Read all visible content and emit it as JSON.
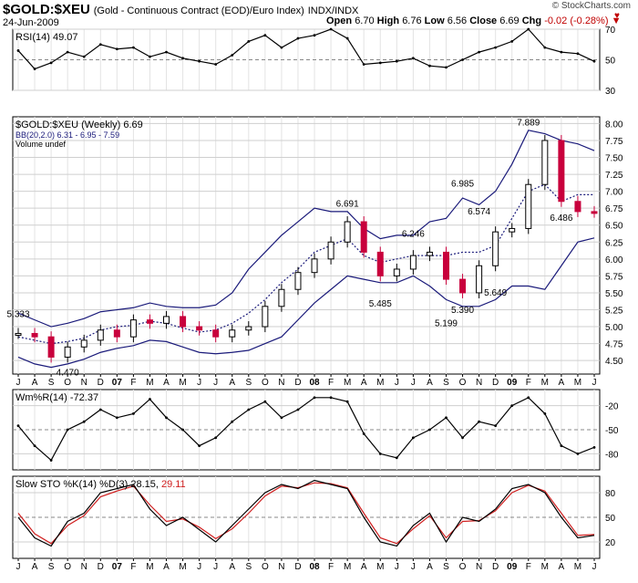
{
  "header": {
    "symbol": "$GOLD:$XEU",
    "description": "(Gold - Continuous Contract (EOD)/Euro Index)",
    "exchange": "INDX/INDX",
    "date": "24-Jun-2009",
    "open_label": "Open",
    "open": "6.70",
    "high_label": "High",
    "high": "6.76",
    "low_label": "Low",
    "low": "6.56",
    "close_label": "Close",
    "close": "6.69",
    "chg_label": "Chg",
    "chg": "-0.02 (-0.28%)",
    "brand": "© StockCharts.com",
    "chg_arrow_icon": "down-triangle-icon"
  },
  "colors": {
    "up": "#000000",
    "down": "#c8003c",
    "band": "#1a1a7a",
    "fill_green": "#5a8a5a",
    "fill_red": "#c07070",
    "slow_d": "#d02020"
  },
  "chart_data": [
    {
      "type": "line",
      "title": "RSI(14) 49.07",
      "legend": [
        "RSI(14) 49.07"
      ],
      "ylim": [
        30,
        70
      ],
      "y_ticks": [
        "70",
        "50",
        "30"
      ],
      "shaded": "above 70 green",
      "x": [
        "2006-07",
        "2006-08",
        "2006-09",
        "2006-10",
        "2006-11",
        "2006-12",
        "2007-01",
        "2007-02",
        "2007-03",
        "2007-04",
        "2007-05",
        "2007-06",
        "2007-07",
        "2007-08",
        "2007-09",
        "2007-10",
        "2007-11",
        "2007-12",
        "2008-01",
        "2008-02",
        "2008-03",
        "2008-04",
        "2008-05",
        "2008-06",
        "2008-07",
        "2008-08",
        "2008-09",
        "2008-10",
        "2008-11",
        "2008-12",
        "2009-01",
        "2009-02",
        "2009-03",
        "2009-04",
        "2009-05",
        "2009-06"
      ],
      "values": [
        56,
        44,
        48,
        55,
        52,
        60,
        57,
        58,
        52,
        55,
        51,
        49,
        47,
        53,
        62,
        66,
        58,
        64,
        66,
        70,
        64,
        47,
        48,
        49,
        51,
        46,
        45,
        50,
        55,
        58,
        62,
        70,
        58,
        55,
        54,
        49
      ]
    },
    {
      "type": "candlestick",
      "title": "$GOLD:$XEU (Weekly) 6.69",
      "legend": [
        "$GOLD:$XEU (Weekly) 6.69",
        "BB(20,2.0) 6.31 - 6.95 - 7.59",
        "Volume undef"
      ],
      "ylim": [
        4.3,
        8.1
      ],
      "y_ticks": [
        "8.00",
        "7.75",
        "7.50",
        "7.25",
        "7.00",
        "6.75",
        "6.50",
        "6.25",
        "6.00",
        "5.75",
        "5.50",
        "5.25",
        "5.00",
        "4.75",
        "4.50"
      ],
      "x_ticks": [
        "J",
        "A",
        "S",
        "O",
        "N",
        "D",
        "07",
        "F",
        "M",
        "A",
        "M",
        "J",
        "J",
        "A",
        "S",
        "O",
        "N",
        "D",
        "08",
        "F",
        "M",
        "A",
        "M",
        "J",
        "J",
        "A",
        "S",
        "O",
        "N",
        "D",
        "09",
        "F",
        "M",
        "A",
        "M",
        "J"
      ],
      "bb_upper": [
        5.2,
        5.1,
        5.0,
        5.05,
        5.12,
        5.22,
        5.25,
        5.28,
        5.35,
        5.3,
        5.28,
        5.28,
        5.32,
        5.5,
        5.85,
        6.1,
        6.35,
        6.55,
        6.75,
        6.7,
        6.7,
        6.45,
        6.3,
        6.35,
        6.35,
        6.55,
        6.6,
        6.9,
        6.8,
        7.0,
        7.4,
        7.9,
        7.85,
        7.75,
        7.7,
        7.6
      ],
      "bb_middle": [
        4.85,
        4.8,
        4.75,
        4.78,
        4.83,
        4.95,
        5.0,
        5.02,
        5.08,
        5.05,
        4.98,
        4.92,
        4.95,
        5.05,
        5.2,
        5.4,
        5.65,
        5.85,
        6.1,
        6.2,
        6.3,
        6.05,
        5.95,
        6.0,
        6.05,
        6.05,
        6.05,
        6.1,
        6.1,
        6.2,
        6.6,
        7.0,
        7.1,
        6.85,
        6.95,
        6.95
      ],
      "bb_lower": [
        4.55,
        4.45,
        4.4,
        4.45,
        4.52,
        4.62,
        4.68,
        4.72,
        4.8,
        4.78,
        4.7,
        4.62,
        4.6,
        4.62,
        4.65,
        4.75,
        4.85,
        5.1,
        5.35,
        5.55,
        5.75,
        5.7,
        5.65,
        5.65,
        5.75,
        5.6,
        5.4,
        5.3,
        5.3,
        5.4,
        5.6,
        5.6,
        5.55,
        5.9,
        6.25,
        6.31
      ],
      "annotations": [
        {
          "label": "5.333",
          "x": "2006-07",
          "y": 5.333
        },
        {
          "label": "4.470",
          "x": "2006-10",
          "y": 4.47
        },
        {
          "label": "6.691",
          "x": "2008-03",
          "y": 6.691
        },
        {
          "label": "5.485",
          "x": "2008-05",
          "y": 5.485
        },
        {
          "label": "6.246",
          "x": "2008-07",
          "y": 6.246
        },
        {
          "label": "6.985",
          "x": "2008-10",
          "y": 6.985
        },
        {
          "label": "5.199",
          "x": "2008-09",
          "y": 5.199
        },
        {
          "label": "5.390",
          "x": "2008-10",
          "y": 5.39
        },
        {
          "label": "6.574",
          "x": "2008-11",
          "y": 6.574
        },
        {
          "label": "5.649",
          "x": "2008-12",
          "y": 5.649
        },
        {
          "label": "7.889",
          "x": "2009-02",
          "y": 7.889
        },
        {
          "label": "6.486",
          "x": "2009-04",
          "y": 6.486
        }
      ],
      "close": [
        4.9,
        4.85,
        4.55,
        4.7,
        4.8,
        4.95,
        4.85,
        5.1,
        5.05,
        5.15,
        5.0,
        4.95,
        4.85,
        4.95,
        5.0,
        5.3,
        5.55,
        5.8,
        6.0,
        6.25,
        6.55,
        6.1,
        5.75,
        5.85,
        6.05,
        6.1,
        5.7,
        5.5,
        5.9,
        6.4,
        6.45,
        7.1,
        7.75,
        6.85,
        6.7,
        6.69
      ]
    },
    {
      "type": "line",
      "title": "Wm%R(14) -72.37",
      "legend": [
        "Wm%R(14) -72.37"
      ],
      "ylim": [
        -100,
        0
      ],
      "y_ticks": [
        "-20",
        "-50",
        "-80"
      ],
      "shaded": "above -20 green, below -80 red",
      "values": [
        -45,
        -70,
        -88,
        -50,
        -40,
        -25,
        -35,
        -30,
        -12,
        -35,
        -50,
        -70,
        -60,
        -40,
        -25,
        -15,
        -35,
        -25,
        -10,
        -10,
        -15,
        -55,
        -80,
        -85,
        -60,
        -50,
        -35,
        -60,
        -40,
        -45,
        -20,
        -10,
        -30,
        -70,
        -80,
        -72
      ]
    },
    {
      "type": "line",
      "title": "Slow STO %K(14) %D(3) 28.15, 29.11",
      "legend": [
        "Slow STO %K(14) %D(3) 28.15",
        "29.11"
      ],
      "ylim": [
        0,
        100
      ],
      "y_ticks": [
        "80",
        "50",
        "20"
      ],
      "series": [
        {
          "name": "%K(14)",
          "values": [
            50,
            25,
            15,
            45,
            55,
            80,
            85,
            90,
            60,
            40,
            50,
            35,
            20,
            40,
            60,
            80,
            90,
            85,
            95,
            90,
            85,
            50,
            20,
            15,
            40,
            55,
            20,
            50,
            45,
            60,
            85,
            90,
            80,
            50,
            25,
            28
          ]
        },
        {
          "name": "%D(3)",
          "values": [
            55,
            30,
            18,
            40,
            52,
            75,
            82,
            88,
            65,
            45,
            48,
            38,
            24,
            36,
            55,
            76,
            88,
            86,
            92,
            91,
            86,
            55,
            25,
            18,
            36,
            52,
            25,
            45,
            46,
            58,
            80,
            89,
            82,
            55,
            28,
            29
          ]
        }
      ]
    }
  ],
  "x_ticks": [
    "J",
    "A",
    "S",
    "O",
    "N",
    "D",
    "07",
    "F",
    "M",
    "A",
    "M",
    "J",
    "J",
    "A",
    "S",
    "O",
    "N",
    "D",
    "08",
    "F",
    "M",
    "A",
    "M",
    "J",
    "J",
    "A",
    "S",
    "O",
    "N",
    "D",
    "09",
    "F",
    "M",
    "A",
    "M",
    "J"
  ]
}
